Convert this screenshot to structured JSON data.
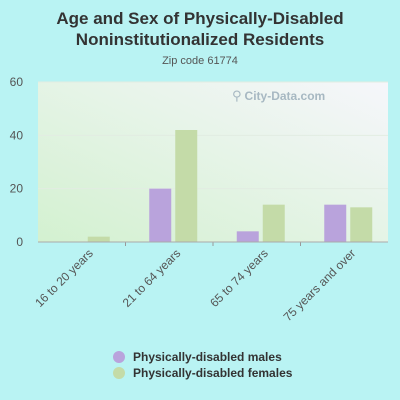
{
  "watermark": "City-Data.com",
  "colors": {
    "males": "#b9a3dc",
    "females": "#c4dba8"
  },
  "chart_data": {
    "type": "bar",
    "title": "Age and Sex of Physically-Disabled Noninstitutionalized Residents",
    "subtitle": "Zip code 61774",
    "categories": [
      "16 to 20 years",
      "21 to 64 years",
      "65 to 74 years",
      "75 years and over"
    ],
    "series": [
      {
        "name": "Physically-disabled males",
        "values": [
          0,
          20,
          4,
          14
        ]
      },
      {
        "name": "Physically-disabled females",
        "values": [
          2,
          42,
          14,
          13
        ]
      }
    ],
    "yticks": [
      0,
      20,
      40,
      60
    ],
    "ylim": [
      0,
      60
    ],
    "grid": true,
    "legend": "bottom"
  }
}
